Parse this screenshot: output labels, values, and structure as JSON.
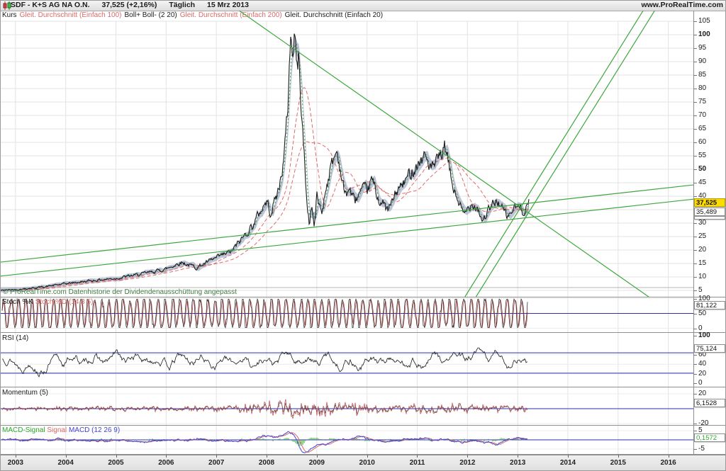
{
  "header": {
    "symbol": "SDF - K+S AG NA O.N.",
    "quote": "37,525 (+2,16%)",
    "timeframe": "Täglich",
    "date": "15 Mrz 2013",
    "website": "www.ProRealTime.com"
  },
  "main_legend": [
    {
      "text": "Kurs",
      "color": "#1a1a1a"
    },
    {
      "text": "Gleit. Durchschnitt (Einfach 100)",
      "color": "#d96a6a"
    },
    {
      "text": "Boll+ Boll- (2 20)",
      "color": "#1a1a1a"
    },
    {
      "text": "Gleit. Durchschnitt (Einfach 200)",
      "color": "#d96a6a"
    },
    {
      "text": "Gleit. Durchschnitt (Einfach 20)",
      "color": "#1a1a1a"
    }
  ],
  "copyright": "© ProRealTime.com Datenhistorie der Dividendenausschüttung angepasst",
  "price_axis": {
    "ticks": [
      105,
      100,
      95,
      90,
      85,
      80,
      75,
      70,
      65,
      60,
      55,
      50,
      45,
      40,
      30,
      25,
      20,
      15,
      10,
      5
    ],
    "bold": [
      100,
      50
    ],
    "current_price": "37,525",
    "close_prev": "35,489"
  },
  "time_axis": {
    "years": [
      "2003",
      "2004",
      "2005",
      "2006",
      "2007",
      "2008",
      "2009",
      "2010",
      "2011",
      "2012",
      "2013",
      "2014",
      "2015",
      "2016"
    ]
  },
  "panels": {
    "stoch": {
      "label": [
        {
          "text": "Stoch %K ",
          "color": "#1a1a1a"
        },
        {
          "text": "Stoch %D (14 3 5)",
          "color": "#d96a6a"
        }
      ],
      "ticks": [
        {
          "v": 100,
          "t": "100",
          "b": false
        },
        {
          "v": 50,
          "t": "50",
          "b": false
        },
        {
          "v": 0,
          "t": "0",
          "b": false
        }
      ],
      "value": "81,122"
    },
    "rsi": {
      "label": [
        {
          "text": "RSI (14)",
          "color": "#1a1a1a"
        }
      ],
      "ticks": [
        {
          "v": 100,
          "t": "100",
          "b": true
        },
        {
          "v": 60,
          "t": "60",
          "b": false
        },
        {
          "v": 40,
          "t": "40",
          "b": false
        },
        {
          "v": 20,
          "t": "20",
          "b": false
        },
        {
          "v": 0,
          "t": "0",
          "b": false
        }
      ],
      "value": "75,124"
    },
    "momentum": {
      "label": [
        {
          "text": "Momentum (5)",
          "color": "#1a1a1a"
        }
      ],
      "ticks": [
        {
          "v": 20,
          "t": "20",
          "b": false
        },
        {
          "v": -20,
          "t": "-20",
          "b": false
        }
      ],
      "value": "6,1528"
    },
    "macd": {
      "label": [
        {
          "text": "MACD-Signal ",
          "color": "#2ea82e"
        },
        {
          "text": "Signal ",
          "color": "#d96a6a"
        },
        {
          "text": "MACD (12 26 9)",
          "color": "#4646cc"
        }
      ],
      "ticks": [
        {
          "v": 5,
          "t": "5",
          "b": false
        },
        {
          "v": -5,
          "t": "-5",
          "b": false
        }
      ],
      "value": "0,1572"
    }
  },
  "chart_data": {
    "type": "line",
    "title": "K+S AG NA O.N. (SDF) Täglich, 15 Mrz 2013 — Kurs 37,525 (+2,16%) mit Bollinger(2 20), SMA 20/100/200 und Trendlinien; Unterfenster: Stoch %K/%D(14 3 5)=81,122; RSI(14)=75,124; Momentum(5)=6,1528; MACD(12 26 9)=0,1572",
    "x_range": [
      2002.7,
      2016.55
    ],
    "y_range": [
      2.5,
      107
    ],
    "y_tick_step": 5,
    "price_monthly": [
      [
        2002.7,
        5
      ],
      [
        2003,
        5.3
      ],
      [
        2003.5,
        6.2
      ],
      [
        2004,
        7.5
      ],
      [
        2004.5,
        8.6
      ],
      [
        2005,
        9.5
      ],
      [
        2005.5,
        11
      ],
      [
        2006,
        13
      ],
      [
        2006.3,
        15.5
      ],
      [
        2006.6,
        13.5
      ],
      [
        2007,
        17
      ],
      [
        2007.3,
        19.5
      ],
      [
        2007.5,
        24
      ],
      [
        2007.75,
        30
      ],
      [
        2007.92,
        36
      ],
      [
        2008,
        38
      ],
      [
        2008.08,
        34
      ],
      [
        2008.25,
        43
      ],
      [
        2008.35,
        55
      ],
      [
        2008.42,
        72
      ],
      [
        2008.47,
        97
      ],
      [
        2008.5,
        100
      ],
      [
        2008.53,
        90
      ],
      [
        2008.56,
        104
      ],
      [
        2008.6,
        86
      ],
      [
        2008.64,
        92
      ],
      [
        2008.7,
        70
      ],
      [
        2008.75,
        55
      ],
      [
        2008.8,
        38
      ],
      [
        2008.85,
        30
      ],
      [
        2008.9,
        37
      ],
      [
        2008.95,
        28
      ],
      [
        2009,
        40
      ],
      [
        2009.1,
        34
      ],
      [
        2009.2,
        45
      ],
      [
        2009.3,
        52
      ],
      [
        2009.4,
        57
      ],
      [
        2009.5,
        47
      ],
      [
        2009.56,
        40
      ],
      [
        2009.65,
        43
      ],
      [
        2009.75,
        38
      ],
      [
        2009.85,
        41
      ],
      [
        2010,
        42
      ],
      [
        2010.1,
        46
      ],
      [
        2010.2,
        40
      ],
      [
        2010.32,
        37
      ],
      [
        2010.42,
        34.5
      ],
      [
        2010.5,
        38
      ],
      [
        2010.6,
        42
      ],
      [
        2010.75,
        45
      ],
      [
        2010.9,
        50
      ],
      [
        2011,
        52
      ],
      [
        2011.15,
        55
      ],
      [
        2011.3,
        50
      ],
      [
        2011.45,
        54
      ],
      [
        2011.55,
        58
      ],
      [
        2011.62,
        52
      ],
      [
        2011.68,
        46
      ],
      [
        2011.75,
        41
      ],
      [
        2011.85,
        37
      ],
      [
        2011.92,
        32.5
      ],
      [
        2012,
        35
      ],
      [
        2012.1,
        38
      ],
      [
        2012.2,
        36
      ],
      [
        2012.3,
        31
      ],
      [
        2012.4,
        34
      ],
      [
        2012.5,
        36.5
      ],
      [
        2012.6,
        38.5
      ],
      [
        2012.7,
        35
      ],
      [
        2012.8,
        32
      ],
      [
        2012.9,
        35
      ],
      [
        2013,
        36
      ],
      [
        2013.1,
        34.5
      ],
      [
        2013.2,
        37.5
      ]
    ],
    "trendlines": [
      {
        "from": [
          2007.45,
          109
        ],
        "to": [
          2015.61,
          2.6
        ]
      },
      {
        "from": [
          2011.95,
          2.6
        ],
        "to": [
          2015.5,
          109
        ]
      },
      {
        "from": [
          2012.17,
          2.6
        ],
        "to": [
          2015.73,
          109
        ]
      },
      {
        "from": [
          2002.7,
          15.5
        ],
        "to": [
          2016.5,
          44.2
        ]
      },
      {
        "from": [
          2002.7,
          10.3
        ],
        "to": [
          2016.5,
          38.9
        ]
      }
    ],
    "indicators": {
      "stoch": {
        "range": [
          0,
          100
        ],
        "level_line": 50,
        "last": 81.122
      },
      "rsi": {
        "range": [
          0,
          100
        ],
        "level_lines": [
          64,
          21
        ],
        "last": 75.124
      },
      "momentum": {
        "range": [
          -25,
          25
        ],
        "level_line": 0,
        "last": 6.1528
      },
      "macd": {
        "range": [
          -7.7,
          7.7
        ],
        "level_line": 0,
        "last": 0.1572
      }
    },
    "colors": {
      "price": "#1a1a1a",
      "band": "rgba(140,147,185,0.55)",
      "ma_red": "#e06b6b",
      "ma_green": "#2e9e3e",
      "trend": "#3da73d",
      "level_blue": "#2f2fb0",
      "stoch_d": "#c05555",
      "momentum": "#b54848",
      "macd_line": "#4646cc",
      "macd_signal": "#d96a6a",
      "macd_hist": "#2ea82e",
      "grid": "#e3e3e3"
    }
  }
}
